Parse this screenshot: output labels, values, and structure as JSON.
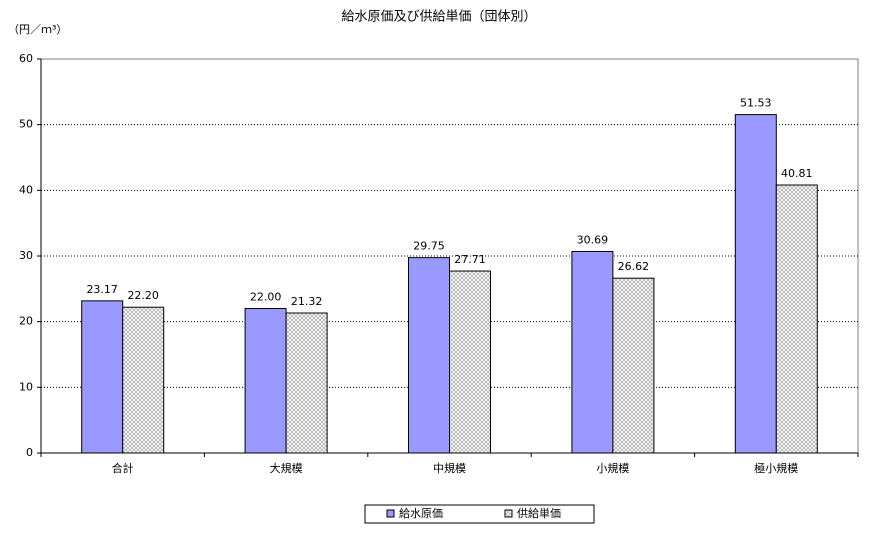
{
  "chart_data": {
    "type": "bar",
    "title": "給水原価及び供給単価（団体別）",
    "y_label": "（円／ｍ³）",
    "categories": [
      "合計",
      "大規模",
      "中規模",
      "小規模",
      "極小規模"
    ],
    "series": [
      {
        "name": "給水原価",
        "color": "#9999ff",
        "values": [
          23.17,
          22.0,
          29.75,
          30.69,
          51.53
        ],
        "value_labels": [
          "23.17",
          "22.00",
          "29.75",
          "30.69",
          "51.53"
        ]
      },
      {
        "name": "供給単価",
        "color": "#c0c0c0",
        "values": [
          22.2,
          21.32,
          27.71,
          26.62,
          40.81
        ],
        "value_labels": [
          "22.20",
          "21.32",
          "27.71",
          "26.62",
          "40.81"
        ],
        "hatched": true
      }
    ],
    "ylim": [
      0,
      60
    ],
    "yticks": [
      0,
      10,
      20,
      30,
      40,
      50,
      60
    ],
    "grid": true,
    "legend": "bottom"
  }
}
